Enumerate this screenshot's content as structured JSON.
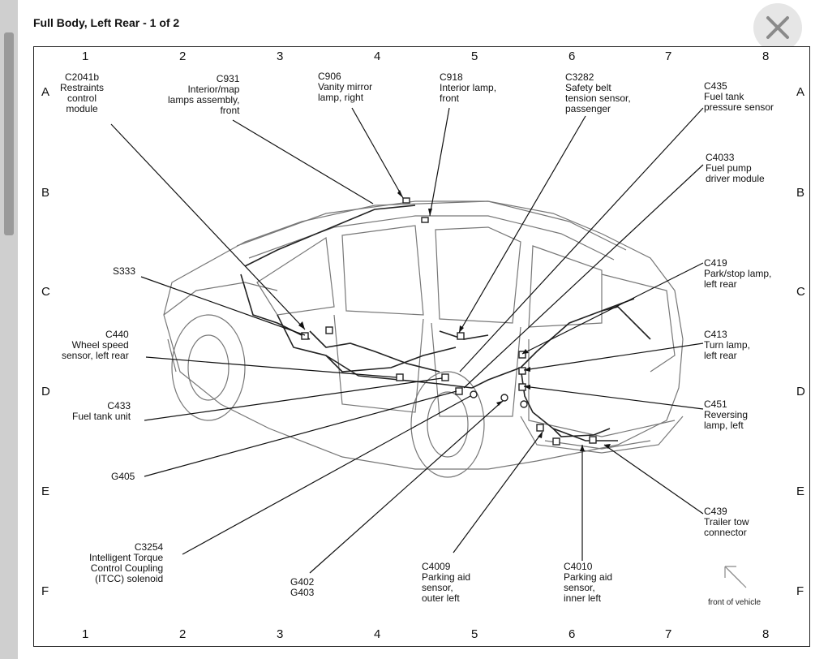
{
  "title": "Full Body, Left Rear - 1 of 2",
  "close_icon": "close-icon",
  "grid": {
    "columns": [
      "1",
      "2",
      "3",
      "4",
      "5",
      "6",
      "7",
      "8"
    ],
    "rows": [
      "A",
      "B",
      "C",
      "D",
      "E",
      "F"
    ]
  },
  "callouts": {
    "c2041b": "C2041b\nRestraints\ncontrol\nmodule",
    "c931": "C931\nInterior/map\nlamps assembly,\nfront",
    "c906": "C906\nVanity mirror\nlamp, right",
    "c918": "C918\nInterior lamp,\nfront",
    "c3282": "C3282\nSafety belt\ntension sensor,\npassenger",
    "c435": "C435\nFuel tank\npressure sensor",
    "c4033": "C4033\nFuel pump\ndriver module",
    "s333": "S333",
    "c419": "C419\nPark/stop lamp,\nleft rear",
    "c440": "C440\nWheel speed\nsensor, left rear",
    "c413": "C413\nTurn lamp,\nleft rear",
    "c433": "C433\nFuel tank unit",
    "c451": "C451\nReversing\nlamp, left",
    "g405": "G405",
    "c439": "C439\nTrailer tow\nconnector",
    "c3254": "C3254\nIntelligent Torque\nControl Coupling\n(ITCC) solenoid",
    "g402": "G402\nG403",
    "c4009": "C4009\nParking aid\nsensor,\nouter left",
    "c4010": "C4010\nParking aid\nsensor,\ninner left"
  },
  "front_of_vehicle": "front of vehicle",
  "arrow_icon": "front-arrow-icon"
}
